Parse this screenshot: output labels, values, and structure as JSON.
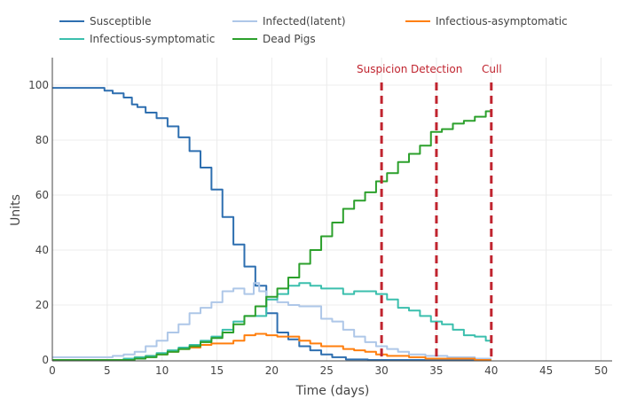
{
  "chart_data": {
    "type": "line",
    "title": "",
    "xlabel": "Time (days)",
    "ylabel": "Units",
    "xlim": [
      0,
      51
    ],
    "ylim": [
      0,
      110
    ],
    "xticks": [
      0,
      5,
      10,
      15,
      20,
      25,
      30,
      35,
      40,
      45,
      50
    ],
    "yticks": [
      0,
      20,
      40,
      60,
      80,
      100
    ],
    "grid": true,
    "legend_position": "top",
    "series": [
      {
        "name": "Susceptible",
        "color": "#2e6fb0",
        "x": [
          0,
          4.5,
          5,
          6,
          7,
          7.5,
          8,
          9,
          10,
          11,
          12,
          13,
          14,
          15,
          16,
          17,
          18,
          19,
          20,
          21,
          22,
          23,
          24,
          25,
          26,
          27.5,
          30,
          35,
          40
        ],
        "y": [
          99,
          99,
          98,
          97,
          95.5,
          93,
          92,
          90,
          88,
          85,
          81,
          76,
          70,
          62,
          52,
          42,
          34,
          27,
          17,
          10,
          7.5,
          5,
          3.5,
          2,
          1,
          0.2,
          0,
          0,
          0
        ]
      },
      {
        "name": "Infected(latent)",
        "color": "#aec7e8",
        "x": [
          0,
          5,
          6,
          7,
          8,
          9,
          10,
          11,
          12,
          13,
          14,
          15,
          16,
          17,
          18,
          18.7,
          19,
          20,
          21,
          22,
          23,
          24,
          25,
          26,
          27,
          28,
          29,
          30,
          31,
          32,
          33,
          35,
          37,
          40
        ],
        "y": [
          1,
          1,
          1.5,
          2,
          3,
          5,
          7,
          10,
          13,
          17,
          19,
          21,
          25,
          26,
          24,
          28,
          25,
          22,
          21,
          20,
          19.5,
          19.5,
          15,
          14,
          11,
          8.5,
          6.5,
          5,
          4,
          3,
          2,
          1.5,
          1,
          0.5
        ]
      },
      {
        "name": "Infectious-asymptomatic",
        "color": "#ff7f0e",
        "x": [
          0,
          6,
          7,
          8,
          9,
          10,
          11,
          12,
          13,
          14,
          15,
          16,
          17,
          18,
          19,
          20,
          21,
          22,
          23,
          24,
          25,
          26,
          27,
          28,
          29,
          30,
          31,
          32,
          33,
          35,
          37,
          40
        ],
        "y": [
          0,
          0,
          0.5,
          1,
          1.5,
          2,
          3,
          4,
          4.5,
          5.5,
          6,
          6,
          7,
          9,
          9.5,
          9,
          8.5,
          8.5,
          7,
          6,
          5,
          5,
          4,
          3.5,
          3,
          2,
          1.5,
          1.5,
          1,
          0.5,
          0.5,
          0
        ]
      },
      {
        "name": "Infectious-symptomatic",
        "color": "#3bbfad",
        "x": [
          0,
          6,
          7,
          8,
          9,
          10,
          11,
          12,
          13,
          14,
          15,
          16,
          17,
          18,
          19,
          20,
          21,
          22,
          23,
          24,
          25,
          26,
          27,
          28,
          29,
          30,
          31,
          32,
          33,
          34,
          35,
          36,
          37,
          38,
          39,
          40
        ],
        "y": [
          0,
          0,
          0.5,
          1,
          1.5,
          2.5,
          3.5,
          4.5,
          5.5,
          7,
          8.5,
          11,
          14,
          16,
          16,
          22,
          24,
          27,
          28,
          27,
          26,
          26,
          24,
          25,
          25,
          24,
          22,
          19,
          18,
          16,
          14,
          13,
          11,
          9,
          8.5,
          7
        ]
      },
      {
        "name": "Dead Pigs",
        "color": "#2ca02c",
        "x": [
          0,
          7,
          8,
          9,
          10,
          11,
          12,
          13,
          14,
          15,
          16,
          17,
          18,
          19,
          20,
          21,
          22,
          23,
          24,
          25,
          26,
          27,
          28,
          29,
          30,
          31,
          32,
          33,
          34,
          35,
          36,
          37,
          38,
          39,
          40
        ],
        "y": [
          0,
          0,
          0.5,
          1,
          2,
          3,
          4,
          5,
          6.5,
          8,
          10,
          13,
          16,
          19.5,
          23,
          26,
          30,
          35,
          40,
          45,
          50,
          55,
          58,
          61,
          65,
          68,
          72,
          75,
          78,
          83,
          84,
          86,
          87,
          88.5,
          90.5
        ]
      }
    ],
    "annotations": [
      {
        "label": "Suspicion",
        "x": 30,
        "color": "#c0242f",
        "style": "dashed"
      },
      {
        "label": "Detection",
        "x": 35,
        "color": "#c0242f",
        "style": "dashed"
      },
      {
        "label": "Cull",
        "x": 40,
        "color": "#c0242f",
        "style": "dashed"
      }
    ]
  }
}
